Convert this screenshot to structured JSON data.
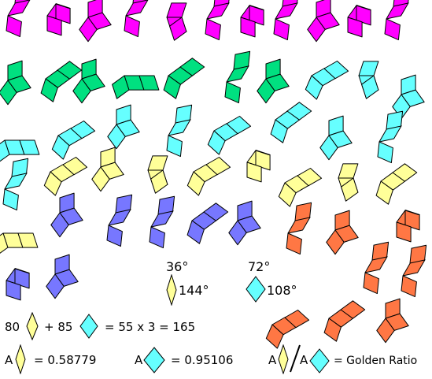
{
  "colors": {
    "magenta": "#ff00ff",
    "green": "#00e080",
    "cyan": "#66ffff",
    "yellow": "#ffff99",
    "blue": "#7777ff",
    "orange": "#ff7744",
    "stroke": "#000000"
  },
  "labels": {
    "thin_top_angle": "36°",
    "thin_side_angle": "144°",
    "fat_top_angle": "72°",
    "fat_side_angle": "108°",
    "eq_count_thin": "80",
    "eq_plus_fat": "+ 85",
    "eq_rest": "= 55 x 3 = 165",
    "area_thin_prefix": "A",
    "area_thin_value": "= 0.58779",
    "area_fat_prefix": "A",
    "area_fat_value": "= 0.95106",
    "ratio_prefix_a": "A",
    "ratio_prefix_b": "A",
    "ratio_result": "= Golden Ratio"
  },
  "icons": [
    "thin-rhomb-icon",
    "fat-rhomb-icon",
    "fraction-slash"
  ]
}
